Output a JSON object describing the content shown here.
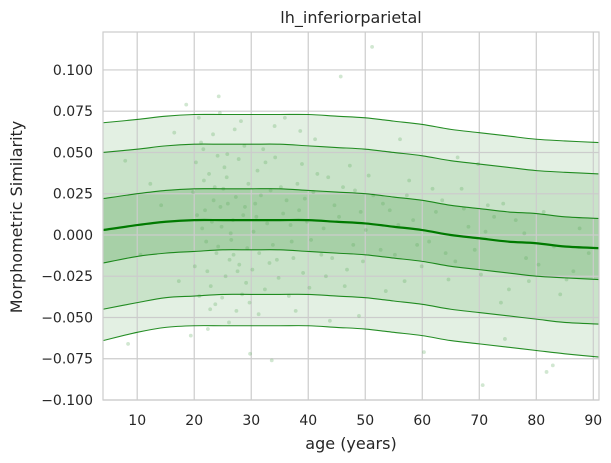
{
  "chart_data": {
    "type": "line",
    "title": "lh_inferiorparietal",
    "xlabel": "age (years)",
    "ylabel": "Morphometric Similarity",
    "xlim": [
      4,
      91
    ],
    "ylim": [
      -0.1,
      0.123
    ],
    "x_ticks": [
      10,
      20,
      30,
      40,
      50,
      60,
      70,
      80,
      90
    ],
    "y_ticks": [
      -0.1,
      -0.075,
      -0.05,
      -0.025,
      0.0,
      0.025,
      0.05,
      0.075,
      0.1
    ],
    "y_tick_labels": [
      "−0.100",
      "−0.075",
      "−0.050",
      "−0.025",
      "0.000",
      "0.025",
      "0.050",
      "0.075",
      "0.100"
    ],
    "grid": true,
    "colors": {
      "line": "#007a00",
      "band_inner": "#a7d0a7",
      "band_mid": "#c9e3c9",
      "band_outer": "#e3f0e3",
      "points": "#5aaa5a",
      "grid": "#cccccc",
      "spine": "#cccccc"
    },
    "x": [
      4,
      10,
      15,
      20,
      25,
      30,
      35,
      40,
      45,
      50,
      55,
      60,
      65,
      70,
      75,
      80,
      85,
      91
    ],
    "series": [
      {
        "values": [
          -0.064,
          -0.059,
          -0.056,
          -0.055,
          -0.055,
          -0.055,
          -0.055,
          -0.055,
          -0.056,
          -0.057,
          -0.059,
          -0.061,
          -0.064,
          -0.066,
          -0.068,
          -0.07,
          -0.072,
          -0.074
        ]
      },
      {
        "values": [
          -0.045,
          -0.041,
          -0.038,
          -0.037,
          -0.036,
          -0.036,
          -0.036,
          -0.036,
          -0.037,
          -0.038,
          -0.04,
          -0.042,
          -0.045,
          -0.047,
          -0.049,
          -0.051,
          -0.053,
          -0.054
        ]
      },
      {
        "values": [
          -0.017,
          -0.013,
          -0.011,
          -0.01,
          -0.009,
          -0.009,
          -0.009,
          -0.01,
          -0.011,
          -0.012,
          -0.014,
          -0.016,
          -0.019,
          -0.021,
          -0.023,
          -0.025,
          -0.026,
          -0.027
        ]
      },
      {
        "values": [
          0.003,
          0.006,
          0.008,
          0.009,
          0.009,
          0.009,
          0.009,
          0.009,
          0.008,
          0.007,
          0.005,
          0.003,
          0.0,
          -0.002,
          -0.004,
          -0.005,
          -0.007,
          -0.008
        ]
      },
      {
        "values": [
          0.022,
          0.025,
          0.027,
          0.028,
          0.028,
          0.028,
          0.028,
          0.027,
          0.026,
          0.025,
          0.023,
          0.021,
          0.018,
          0.016,
          0.014,
          0.013,
          0.011,
          0.01
        ]
      },
      {
        "values": [
          0.05,
          0.052,
          0.054,
          0.055,
          0.055,
          0.055,
          0.055,
          0.054,
          0.053,
          0.052,
          0.05,
          0.048,
          0.045,
          0.043,
          0.041,
          0.039,
          0.038,
          0.037
        ]
      },
      {
        "values": [
          0.068,
          0.07,
          0.072,
          0.073,
          0.073,
          0.073,
          0.073,
          0.073,
          0.072,
          0.071,
          0.069,
          0.067,
          0.064,
          0.062,
          0.06,
          0.058,
          0.057,
          0.056
        ]
      }
    ],
    "scatter_points": [
      [
        20.5,
        0.012
      ],
      [
        22.1,
        -0.004
      ],
      [
        23.4,
        0.021
      ],
      [
        24.8,
        0.005
      ],
      [
        26.2,
        -0.015
      ],
      [
        21.7,
        0.033
      ],
      [
        25.3,
        0.041
      ],
      [
        27.6,
        -0.022
      ],
      [
        28.9,
        0.017
      ],
      [
        30.4,
        0.002
      ],
      [
        19.8,
        0.026
      ],
      [
        22.9,
        -0.031
      ],
      [
        24.1,
        0.048
      ],
      [
        26.8,
        0.009
      ],
      [
        29.3,
        -0.008
      ],
      [
        31.7,
        0.024
      ],
      [
        33.2,
        -0.017
      ],
      [
        35.6,
        0.013
      ],
      [
        38.1,
        0.031
      ],
      [
        40.5,
        -0.003
      ],
      [
        21.2,
        0.056
      ],
      [
        23.7,
        -0.042
      ],
      [
        25.9,
        0.019
      ],
      [
        27.1,
        0.064
      ],
      [
        28.4,
        -0.036
      ],
      [
        32.5,
        0.044
      ],
      [
        34.8,
        -0.026
      ],
      [
        36.9,
        0.006
      ],
      [
        39.4,
        0.022
      ],
      [
        42.3,
        -0.012
      ],
      [
        44.6,
        0.018
      ],
      [
        46.8,
        -0.021
      ],
      [
        48.2,
        0.027
      ],
      [
        50.1,
        0.003
      ],
      [
        52.7,
        -0.009
      ],
      [
        54.3,
        0.015
      ],
      [
        56.9,
        -0.028
      ],
      [
        58.4,
        0.009
      ],
      [
        61.2,
        -0.004
      ],
      [
        63.5,
        0.021
      ],
      [
        65.8,
        -0.016
      ],
      [
        68.1,
        0.005
      ],
      [
        70.3,
        -0.024
      ],
      [
        72.6,
        0.011
      ],
      [
        75.2,
        -0.033
      ],
      [
        77.9,
        0.001
      ],
      [
        80.4,
        -0.018
      ],
      [
        83.1,
        -0.007
      ],
      [
        86.5,
        -0.022
      ],
      [
        89.2,
        -0.011
      ],
      [
        20.1,
        -0.019
      ],
      [
        21.4,
        0.004
      ],
      [
        22.6,
        0.037
      ],
      [
        23.9,
        -0.011
      ],
      [
        25.1,
        0.028
      ],
      [
        26.5,
        -0.003
      ],
      [
        27.8,
        0.046
      ],
      [
        29.1,
        -0.029
      ],
      [
        30.9,
        0.011
      ],
      [
        32.1,
        0.052
      ],
      [
        33.8,
        -0.006
      ],
      [
        35.2,
        0.029
      ],
      [
        37.4,
        -0.014
      ],
      [
        39.8,
        0.008
      ],
      [
        41.6,
        0.037
      ],
      [
        43.1,
        -0.025
      ],
      [
        45.4,
        0.011
      ],
      [
        47.3,
        0.042
      ],
      [
        49.6,
        -0.016
      ],
      [
        51.4,
        0.024
      ],
      [
        53.6,
        -0.034
      ],
      [
        55.8,
        0.006
      ],
      [
        57.7,
        0.033
      ],
      [
        59.9,
        -0.019
      ],
      [
        62.4,
        0.014
      ],
      [
        64.6,
        -0.027
      ],
      [
        66.9,
        0.028
      ],
      [
        69.2,
        -0.009
      ],
      [
        71.5,
        0.018
      ],
      [
        73.8,
        -0.041
      ],
      [
        76.4,
        0.009
      ],
      [
        78.7,
        -0.028
      ],
      [
        81.3,
        0.014
      ],
      [
        84.2,
        -0.036
      ],
      [
        87.6,
        0.004
      ],
      [
        20.8,
        0.071
      ],
      [
        22.4,
        -0.057
      ],
      [
        24.5,
        0.074
      ],
      [
        26.1,
        -0.053
      ],
      [
        28.2,
        0.069
      ],
      [
        31.3,
        -0.048
      ],
      [
        34.1,
        0.066
      ],
      [
        37.8,
        -0.046
      ],
      [
        41.2,
        0.058
      ],
      [
        45.7,
        0.096
      ],
      [
        51.2,
        0.114
      ],
      [
        16.5,
        0.062
      ],
      [
        12.3,
        0.031
      ],
      [
        8.4,
        -0.066
      ],
      [
        7.9,
        0.045
      ],
      [
        10.6,
        -0.012
      ],
      [
        14.2,
        0.018
      ],
      [
        17.3,
        -0.028
      ],
      [
        18.6,
        0.079
      ],
      [
        19.4,
        -0.061
      ],
      [
        24.3,
        0.084
      ],
      [
        29.8,
        -0.072
      ],
      [
        33.6,
        -0.076
      ],
      [
        60.3,
        -0.071
      ],
      [
        70.6,
        -0.091
      ],
      [
        74.5,
        -0.063
      ],
      [
        81.8,
        -0.083
      ],
      [
        82.9,
        -0.079
      ],
      [
        69.8,
        0.043
      ],
      [
        66.2,
        0.047
      ],
      [
        56.1,
        0.058
      ],
      [
        48.9,
        -0.049
      ],
      [
        43.8,
        -0.052
      ],
      [
        38.6,
        0.063
      ],
      [
        35.9,
        0.071
      ],
      [
        21.9,
        0.015
      ],
      [
        22.3,
        -0.022
      ],
      [
        23.1,
        0.008
      ],
      [
        23.6,
        0.029
      ],
      [
        24.2,
        -0.007
      ],
      [
        24.6,
        0.017
      ],
      [
        25.5,
        -0.025
      ],
      [
        25.7,
        0.035
      ],
      [
        26.4,
        0.001
      ],
      [
        26.9,
        -0.012
      ],
      [
        27.3,
        0.023
      ],
      [
        27.9,
        -0.018
      ],
      [
        28.6,
        0.012
      ],
      [
        29.5,
        0.031
      ],
      [
        30.2,
        -0.021
      ],
      [
        30.7,
        0.019
      ],
      [
        31.4,
        -0.011
      ],
      [
        32.8,
        0.007
      ],
      [
        33.4,
        0.027
      ],
      [
        34.5,
        -0.015
      ],
      [
        36.2,
        0.021
      ],
      [
        37.1,
        -0.004
      ],
      [
        38.4,
        0.015
      ],
      [
        39.1,
        -0.023
      ],
      [
        40.9,
        0.026
      ],
      [
        42.7,
        0.004
      ],
      [
        44.2,
        -0.014
      ],
      [
        46.1,
        0.029
      ],
      [
        47.9,
        -0.006
      ],
      [
        49.2,
        0.014
      ],
      [
        20.3,
        0.044
      ],
      [
        20.9,
        -0.037
      ],
      [
        21.6,
        0.052
      ],
      [
        22.8,
        -0.045
      ],
      [
        23.3,
        0.061
      ],
      [
        24.9,
        -0.038
      ],
      [
        25.8,
        0.049
      ],
      [
        27.4,
        -0.046
      ],
      [
        28.8,
        0.054
      ],
      [
        29.7,
        -0.041
      ],
      [
        31.1,
        0.039
      ],
      [
        32.4,
        -0.033
      ],
      [
        34.2,
        0.047
      ],
      [
        36.6,
        -0.037
      ],
      [
        38.9,
        0.043
      ],
      [
        40.2,
        -0.032
      ],
      [
        43.5,
        0.035
      ],
      [
        46.4,
        -0.031
      ],
      [
        50.6,
        0.036
      ],
      [
        53.1,
        0.019
      ],
      [
        55.2,
        -0.012
      ],
      [
        57.3,
        0.024
      ],
      [
        59.1,
        -0.006
      ],
      [
        61.8,
        0.028
      ],
      [
        64.1,
        -0.011
      ],
      [
        67.3,
        0.016
      ],
      [
        71.1,
        0.002
      ],
      [
        74.2,
        0.019
      ],
      [
        78.2,
        -0.014
      ],
      [
        85.3,
        -0.027
      ]
    ]
  }
}
